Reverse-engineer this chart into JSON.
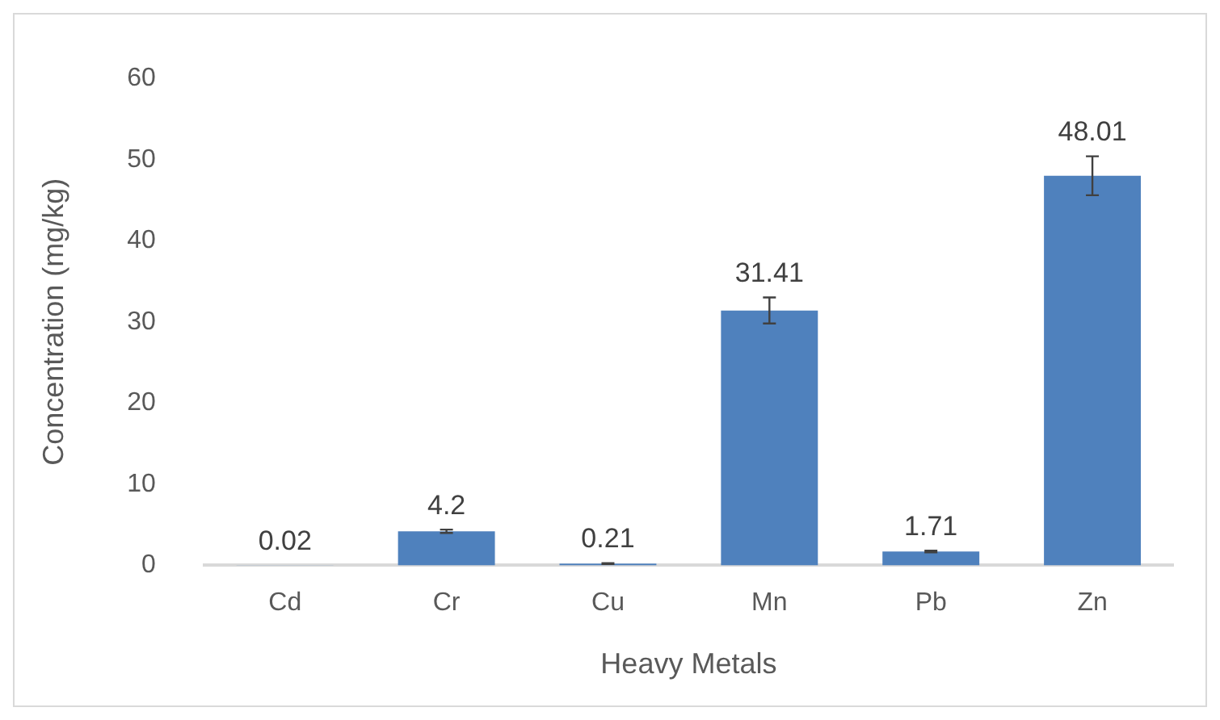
{
  "chart_data": {
    "type": "bar",
    "xlabel": "Heavy Metals",
    "ylabel": "Concentration (mg/kg)",
    "categories": [
      "Cd",
      "Cr",
      "Cu",
      "Mn",
      "Pb",
      "Zn"
    ],
    "values": [
      0.02,
      4.2,
      0.21,
      31.41,
      1.71,
      48.01
    ],
    "errors": [
      null,
      0.2,
      0.05,
      1.6,
      0.1,
      2.4
    ],
    "color": "#4f81bd",
    "data_labels": true,
    "ylim": [
      0,
      60
    ],
    "yticks": [
      0,
      10,
      20,
      30,
      40,
      50,
      60
    ],
    "grid": false,
    "legend": false
  }
}
